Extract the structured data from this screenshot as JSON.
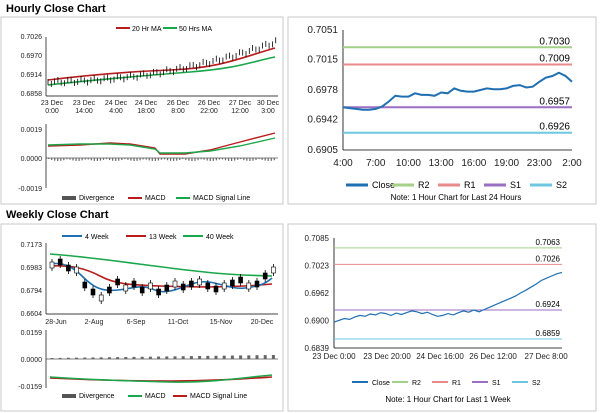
{
  "page": {
    "hourly_title": "Hourly Close Chart",
    "weekly_title": "Weekly Close Chart"
  },
  "colors": {
    "close": "#1f6fb2",
    "ma20": "#b81c1c",
    "ma50": "#1aa64a",
    "r2": "#a4d08a",
    "r1": "#e88a8a",
    "s1": "#9b6fc2",
    "s2": "#6fc6e0",
    "divergence": "#555555",
    "macd": "#b81c1c",
    "signal": "#1aa64a"
  },
  "hourly_price": {
    "legend": [
      "20 Hr MA",
      "50 Hrs MA"
    ],
    "y_ticks": [
      "0.7026",
      "0.6970",
      "0.6914",
      "0.6858"
    ],
    "x_ticks": [
      "23 Dec\n0:00",
      "23 Dec\n14:00",
      "24 Dec\n4:00",
      "24 Dec\n18:00",
      "26 Dec\n8:00",
      "26 Dec\n22:00",
      "27 Dec\n12:00",
      "30 Dec\n3:00"
    ]
  },
  "hourly_macd": {
    "y_ticks": [
      "0.0019",
      "0.0000",
      "-0.0019"
    ],
    "legend": [
      "Divergence",
      "MACD",
      "MACD Signal Line"
    ]
  },
  "chart_data": [
    {
      "type": "line",
      "name": "hourly-pivots",
      "x_ticks": [
        "4:00",
        "7:00",
        "10:00",
        "13:00",
        "16:00",
        "19:00",
        "23:00",
        "2:00"
      ],
      "y_ticks": [
        "0.7051",
        "0.7015",
        "0.6978",
        "0.6942",
        "0.6905"
      ],
      "ylim": [
        0.6905,
        0.7051
      ],
      "series": [
        {
          "name": "Close",
          "values": [
            0.6957,
            0.6956,
            0.6955,
            0.6954,
            0.6954,
            0.6955,
            0.6958,
            0.6964,
            0.6971,
            0.697,
            0.697,
            0.6974,
            0.6972,
            0.6972,
            0.6971,
            0.6975,
            0.6974,
            0.698,
            0.6977,
            0.6976,
            0.6976,
            0.6978,
            0.698,
            0.6979,
            0.6979,
            0.698,
            0.6983,
            0.6984,
            0.6981,
            0.6982,
            0.6988,
            0.6993,
            0.6995,
            0.6999,
            0.6995,
            0.6988
          ]
        }
      ],
      "levels": [
        {
          "name": "R2",
          "value": 0.703,
          "label": "0.7030"
        },
        {
          "name": "R1",
          "value": 0.7009,
          "label": "0.7009"
        },
        {
          "name": "S1",
          "value": 0.6957,
          "label": "0.6957"
        },
        {
          "name": "S2",
          "value": 0.6926,
          "label": "0.6926"
        }
      ],
      "legend": [
        "Close",
        "R2",
        "R1",
        "S1",
        "S2"
      ],
      "note": "Note: 1 Hour Chart for Last 24 Hours"
    },
    {
      "type": "line",
      "name": "weekly-pivots",
      "x_ticks": [
        "23 Dec 0:00",
        "23 Dec 20:00",
        "24 Dec 16:00",
        "26 Dec 12:00",
        "27 Dec 8:00"
      ],
      "y_ticks": [
        "0.7085",
        "0.7023",
        "0.6962",
        "0.6900",
        "0.6839"
      ],
      "ylim": [
        0.6839,
        0.7085
      ],
      "series": [
        {
          "name": "Close",
          "values": [
            0.6897,
            0.6901,
            0.6905,
            0.6903,
            0.6908,
            0.6912,
            0.691,
            0.6915,
            0.6913,
            0.6918,
            0.6916,
            0.6912,
            0.6917,
            0.6914,
            0.6918,
            0.6922,
            0.692,
            0.6916,
            0.6919,
            0.6914,
            0.691,
            0.6912,
            0.6916,
            0.6913,
            0.6918,
            0.6922,
            0.6919,
            0.6924,
            0.692,
            0.6925,
            0.693,
            0.6935,
            0.694,
            0.6945,
            0.695,
            0.6955,
            0.6962,
            0.6968,
            0.6975,
            0.6982,
            0.699,
            0.6995,
            0.7,
            0.7005,
            0.7008
          ]
        }
      ],
      "levels": [
        {
          "name": "R2",
          "value": 0.7063,
          "label": "0.7063"
        },
        {
          "name": "R1",
          "value": 0.7026,
          "label": "0.7026"
        },
        {
          "name": "S1",
          "value": 0.6924,
          "label": "0.6924"
        },
        {
          "name": "S2",
          "value": 0.6859,
          "label": "0.6859"
        }
      ],
      "legend": [
        "Close",
        "R2",
        "R1",
        "S1",
        "S2"
      ],
      "note": "Note: 1 Hour Chart for Last 1 Week"
    }
  ],
  "weekly_price": {
    "legend": [
      "4 Week",
      "13 Week",
      "40 Week"
    ],
    "y_ticks": [
      "0.7173",
      "0.6983",
      "0.6794",
      "0.6604"
    ],
    "x_ticks": [
      "28-Jun",
      "2-Aug",
      "6-Sep",
      "11-Oct",
      "15-Nov",
      "20-Dec"
    ]
  },
  "weekly_macd": {
    "y_ticks": [
      "0.0159",
      "0.0000",
      "-0.0159"
    ],
    "legend": [
      "Divergence",
      "MACD",
      "MACD Signal Line"
    ]
  }
}
